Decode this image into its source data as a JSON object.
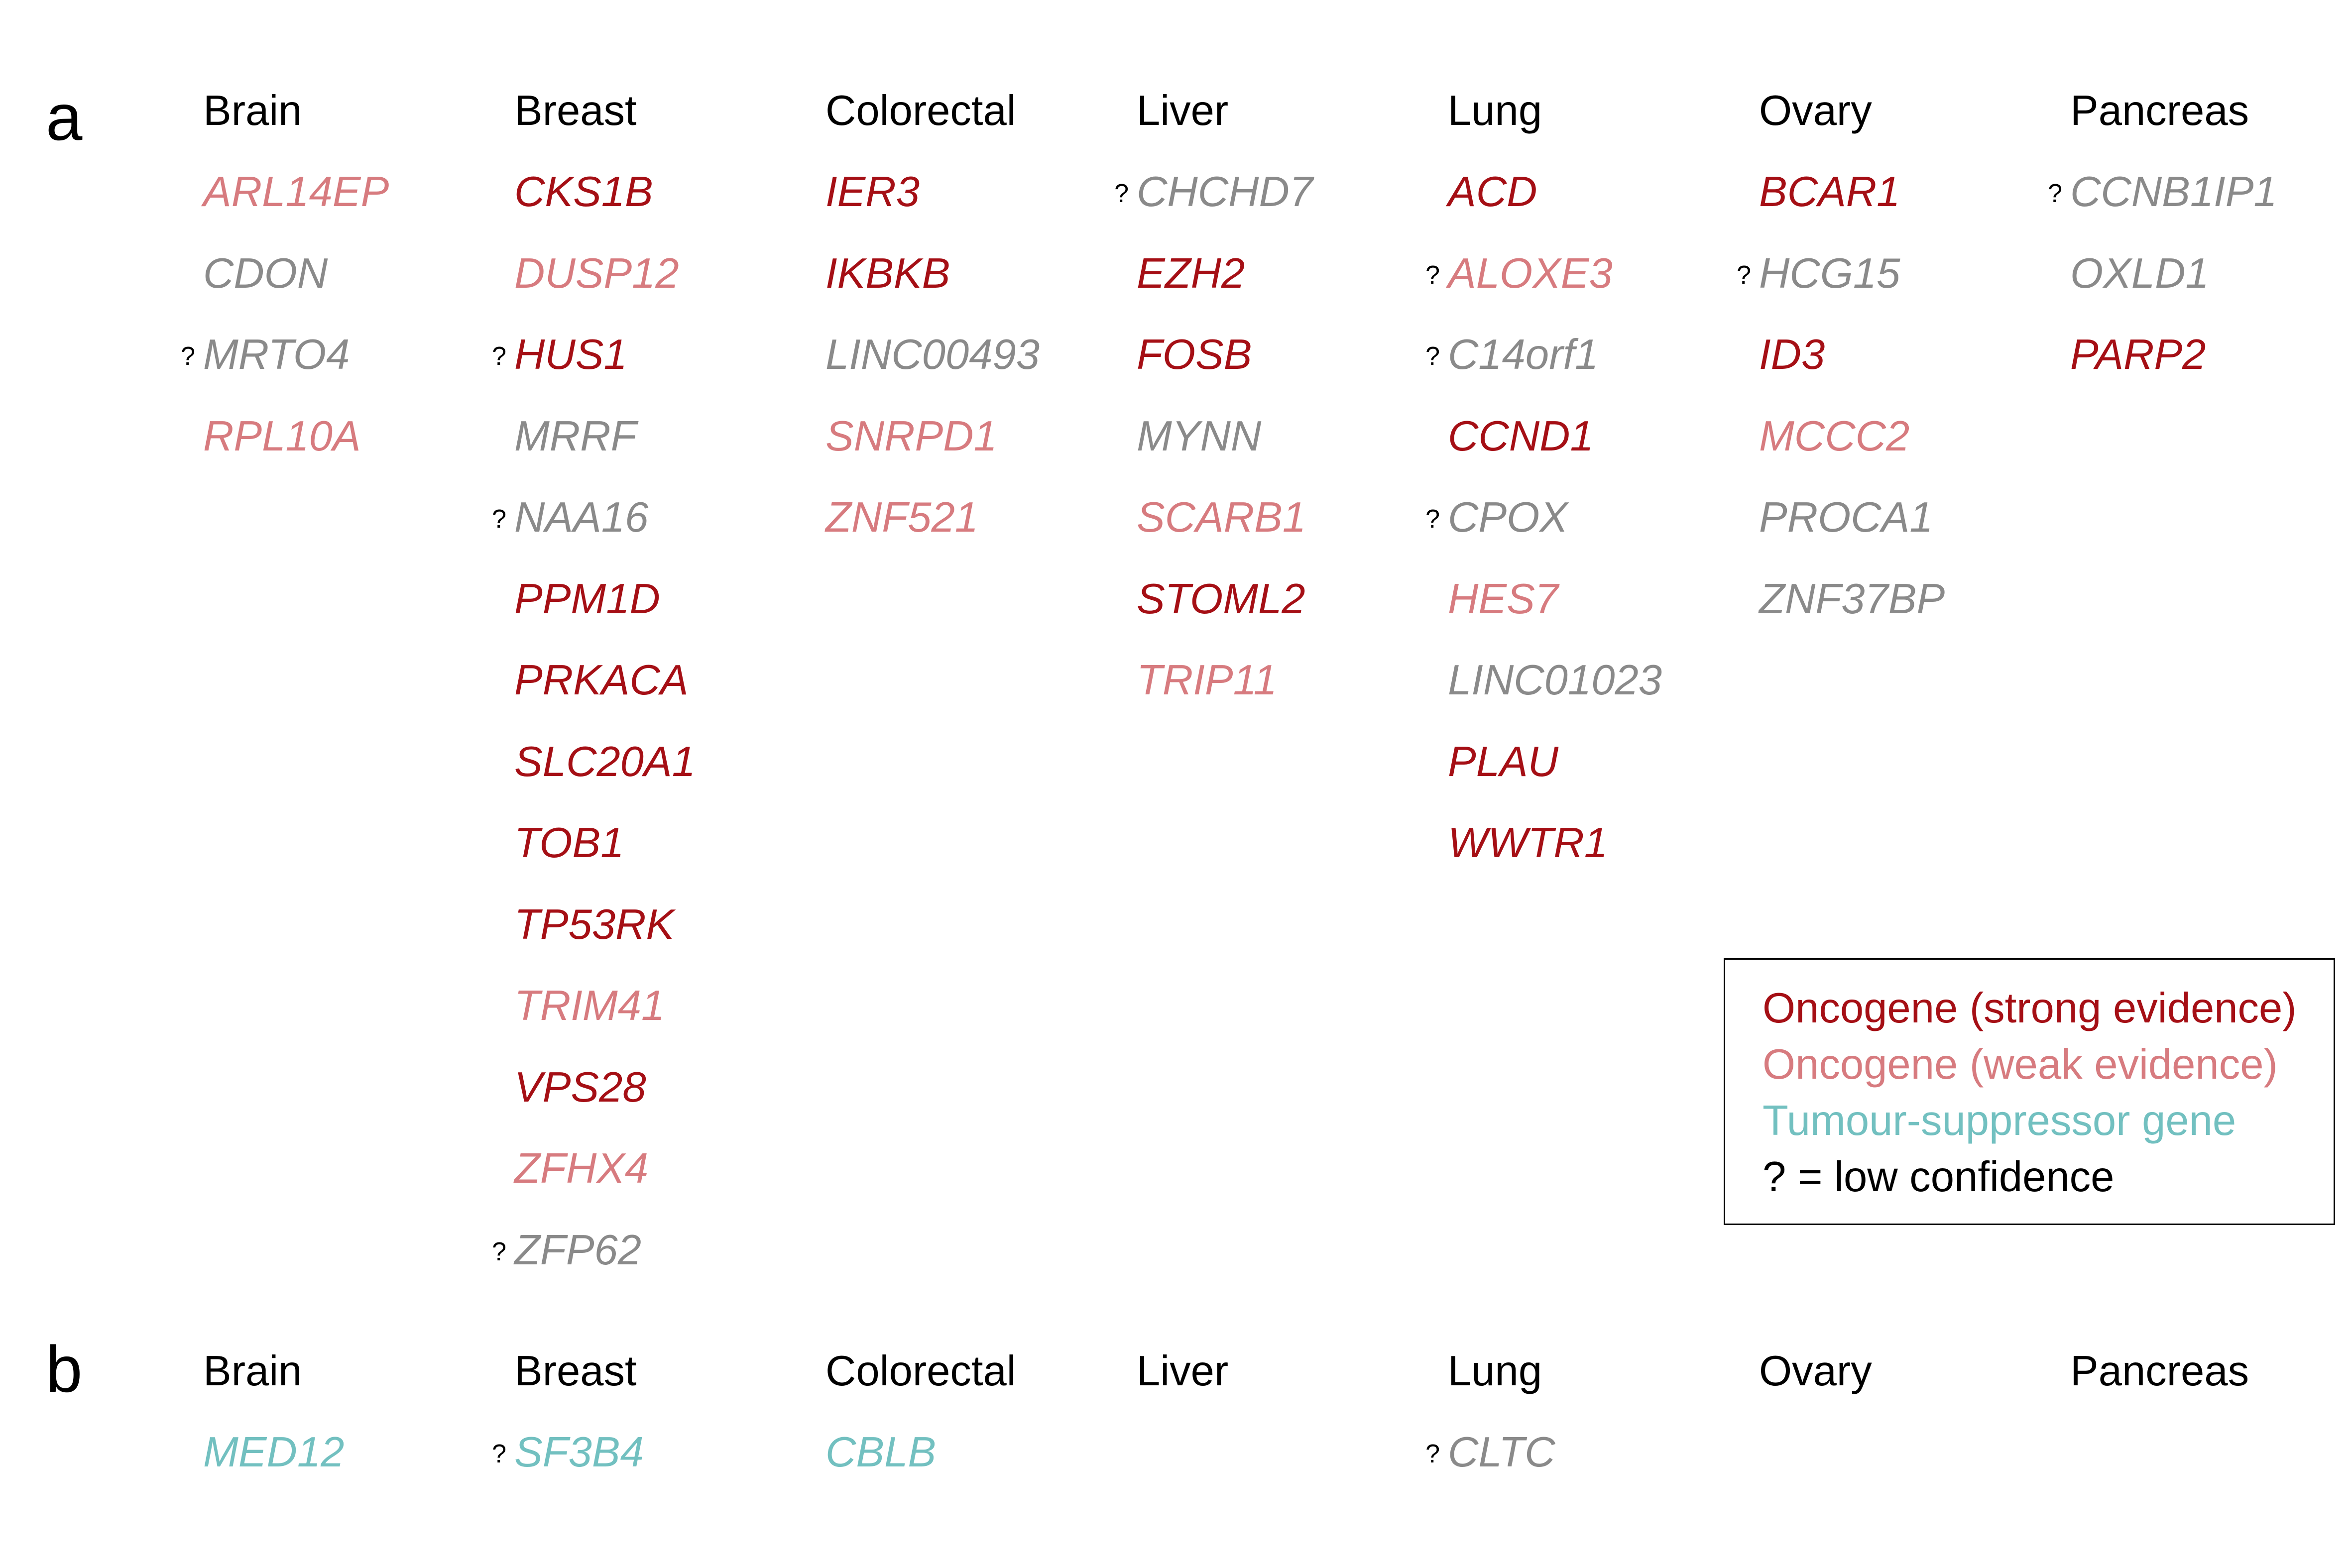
{
  "panel_a": {
    "label": "a",
    "columns": [
      {
        "tissue": "Brain",
        "genes": [
          {
            "name": "ARL14EP",
            "cls": "weak",
            "q": ""
          },
          {
            "name": "CDON",
            "cls": "none",
            "q": ""
          },
          {
            "name": "MRTO4",
            "cls": "none",
            "q": "?"
          },
          {
            "name": "RPL10A",
            "cls": "weak",
            "q": ""
          }
        ]
      },
      {
        "tissue": "Breast",
        "genes": [
          {
            "name": "CKS1B",
            "cls": "strong",
            "q": ""
          },
          {
            "name": "DUSP12",
            "cls": "weak",
            "q": ""
          },
          {
            "name": "HUS1",
            "cls": "strong",
            "q": "?"
          },
          {
            "name": "MRRF",
            "cls": "none",
            "q": ""
          },
          {
            "name": "NAA16",
            "cls": "none",
            "q": "?"
          },
          {
            "name": "PPM1D",
            "cls": "strong",
            "q": ""
          },
          {
            "name": "PRKACA",
            "cls": "strong",
            "q": ""
          },
          {
            "name": "SLC20A1",
            "cls": "strong",
            "q": ""
          },
          {
            "name": "TOB1",
            "cls": "strong",
            "q": ""
          },
          {
            "name": "TP53RK",
            "cls": "strong",
            "q": ""
          },
          {
            "name": "TRIM41",
            "cls": "weak",
            "q": ""
          },
          {
            "name": "VPS28",
            "cls": "strong",
            "q": ""
          },
          {
            "name": "ZFHX4",
            "cls": "weak",
            "q": ""
          },
          {
            "name": "ZFP62",
            "cls": "none",
            "q": "?"
          }
        ]
      },
      {
        "tissue": "Colorectal",
        "genes": [
          {
            "name": "IER3",
            "cls": "strong",
            "q": ""
          },
          {
            "name": "IKBKB",
            "cls": "strong",
            "q": ""
          },
          {
            "name": "LINC00493",
            "cls": "none",
            "q": ""
          },
          {
            "name": "SNRPD1",
            "cls": "weak",
            "q": ""
          },
          {
            "name": "ZNF521",
            "cls": "weak",
            "q": ""
          }
        ]
      },
      {
        "tissue": "Liver",
        "genes": [
          {
            "name": "CHCHD7",
            "cls": "none",
            "q": "?"
          },
          {
            "name": "EZH2",
            "cls": "strong",
            "q": ""
          },
          {
            "name": "FOSB",
            "cls": "strong",
            "q": ""
          },
          {
            "name": "MYNN",
            "cls": "none",
            "q": ""
          },
          {
            "name": "SCARB1",
            "cls": "weak",
            "q": ""
          },
          {
            "name": "STOML2",
            "cls": "strong",
            "q": ""
          },
          {
            "name": "TRIP11",
            "cls": "weak",
            "q": ""
          }
        ]
      },
      {
        "tissue": "Lung",
        "genes": [
          {
            "name": "ACD",
            "cls": "strong",
            "q": ""
          },
          {
            "name": "ALOXE3",
            "cls": "weak",
            "q": "?"
          },
          {
            "name": "C14orf1",
            "cls": "none",
            "q": "?"
          },
          {
            "name": "CCND1",
            "cls": "strong",
            "q": ""
          },
          {
            "name": "CPOX",
            "cls": "none",
            "q": "?"
          },
          {
            "name": "HES7",
            "cls": "weak",
            "q": ""
          },
          {
            "name": "LINC01023",
            "cls": "none",
            "q": ""
          },
          {
            "name": "PLAU",
            "cls": "strong",
            "q": ""
          },
          {
            "name": "WWTR1",
            "cls": "strong",
            "q": ""
          }
        ]
      },
      {
        "tissue": "Ovary",
        "genes": [
          {
            "name": "BCAR1",
            "cls": "strong",
            "q": ""
          },
          {
            "name": "HCG15",
            "cls": "none",
            "q": "?"
          },
          {
            "name": "ID3",
            "cls": "strong",
            "q": ""
          },
          {
            "name": "MCCC2",
            "cls": "weak",
            "q": ""
          },
          {
            "name": "PROCA1",
            "cls": "none",
            "q": ""
          },
          {
            "name": "ZNF37BP",
            "cls": "none",
            "q": ""
          }
        ]
      },
      {
        "tissue": "Pancreas",
        "genes": [
          {
            "name": "CCNB1IP1",
            "cls": "none",
            "q": "?"
          },
          {
            "name": "OXLD1",
            "cls": "none",
            "q": ""
          },
          {
            "name": "PARP2",
            "cls": "strong",
            "q": ""
          }
        ]
      }
    ]
  },
  "panel_b": {
    "label": "b",
    "columns": [
      {
        "tissue": "Brain",
        "genes": [
          {
            "name": "MED12",
            "cls": "ts",
            "q": ""
          }
        ]
      },
      {
        "tissue": "Breast",
        "genes": [
          {
            "name": "SF3B4",
            "cls": "ts",
            "q": "?"
          }
        ]
      },
      {
        "tissue": "Colorectal",
        "genes": [
          {
            "name": "CBLB",
            "cls": "ts",
            "q": ""
          }
        ]
      },
      {
        "tissue": "Liver",
        "genes": []
      },
      {
        "tissue": "Lung",
        "genes": [
          {
            "name": "CLTC",
            "cls": "none",
            "q": "?"
          }
        ]
      },
      {
        "tissue": "Ovary",
        "genes": []
      },
      {
        "tissue": "Pancreas",
        "genes": []
      }
    ]
  },
  "legend": {
    "strong": "Oncogene (strong evidence)",
    "weak": "Oncogene (weak evidence)",
    "ts": "Tumour-suppressor gene",
    "lowconf": "? = low confidence"
  },
  "colors": {
    "oncogene_strong": "#a50f15",
    "oncogene_weak": "#d77b7f",
    "tumour_suppressor": "#72c0c0",
    "unclassified": "#8a8a8a"
  }
}
